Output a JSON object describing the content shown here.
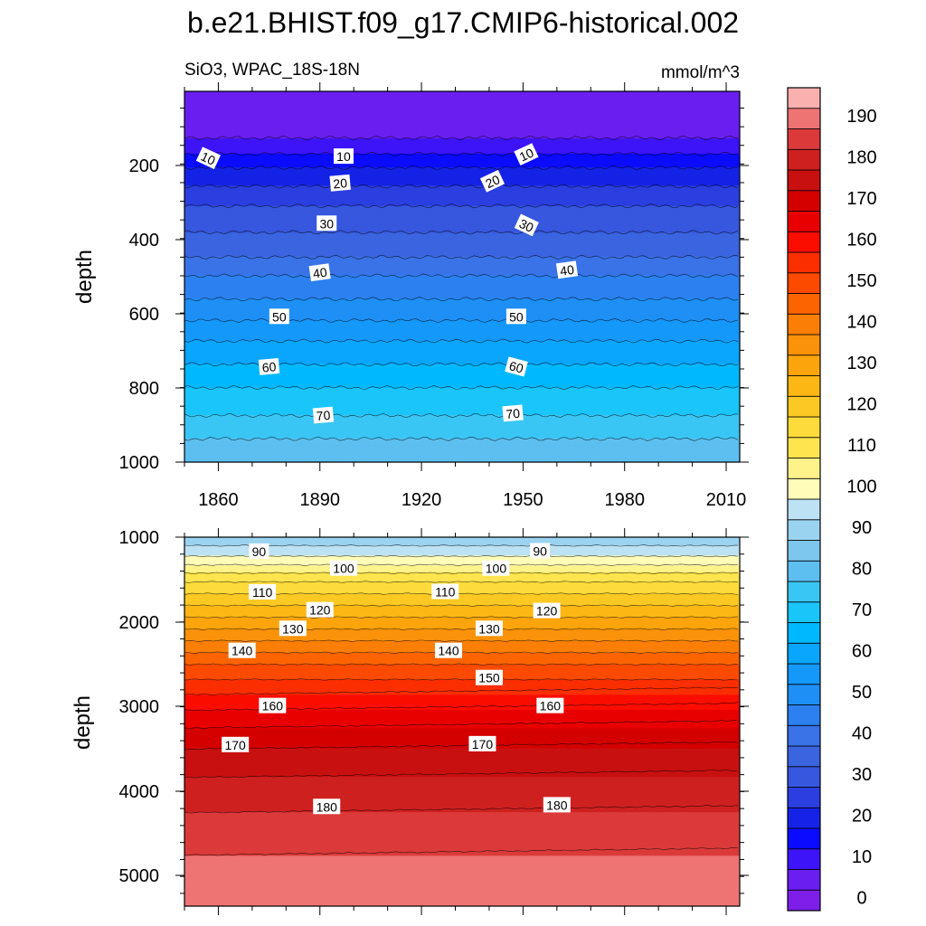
{
  "title": "b.e21.BHIST.f09_g17.CMIP6-historical.002",
  "left_subtitle": "SiO3, WPAC_18S-18N",
  "right_subtitle": "mmol/m^3",
  "colorbar": {
    "levels": [
      0,
      5,
      10,
      15,
      20,
      25,
      30,
      35,
      40,
      45,
      50,
      55,
      60,
      65,
      70,
      75,
      80,
      85,
      90,
      95,
      100,
      105,
      110,
      115,
      120,
      125,
      130,
      135,
      140,
      145,
      150,
      155,
      160,
      165,
      170,
      175,
      180,
      185,
      190
    ],
    "tick_labels": [
      "0",
      "10",
      "20",
      "30",
      "40",
      "50",
      "60",
      "70",
      "80",
      "90",
      "100",
      "110",
      "120",
      "130",
      "140",
      "150",
      "160",
      "170",
      "180",
      "190"
    ],
    "colors": [
      "#7d1fe8",
      "#6a1ef0",
      "#3d14f7",
      "#0a0bff",
      "#1523e6",
      "#2b3fe0",
      "#3657de",
      "#3a64e0",
      "#3a72e8",
      "#2c80f0",
      "#1e8ff5",
      "#1498fa",
      "#0aa6fd",
      "#00b8fd",
      "#1ac5fa",
      "#3ac6f4",
      "#5dbff0",
      "#7dc6ee",
      "#9ad3f0",
      "#bde2f4",
      "#fefcb8",
      "#fef28a",
      "#fee44e",
      "#fddb3a",
      "#fcc823",
      "#fdb714",
      "#fca40c",
      "#fa920a",
      "#fb7e06",
      "#fb6400",
      "#fc4a00",
      "#fb2e00",
      "#fb0d00",
      "#e80000",
      "#d40000",
      "#c91010",
      "#cf2020",
      "#dc3a3a",
      "#ee7474",
      "#fbb0b0"
    ]
  },
  "chart_data": [
    {
      "type": "contour",
      "panel": "upper",
      "x": [
        1850,
        2014
      ],
      "xticks": [
        "1860",
        "1890",
        "1920",
        "1950",
        "1980",
        "2010"
      ],
      "ylabel": "depth",
      "ylim": [
        1000,
        5
      ],
      "yticks": [
        "200",
        "400",
        "600",
        "800",
        "1000"
      ],
      "profile": [
        [
          5,
          1
        ],
        [
          70,
          2
        ],
        [
          120,
          4
        ],
        [
          160,
          8
        ],
        [
          200,
          14
        ],
        [
          250,
          19
        ],
        [
          300,
          24
        ],
        [
          350,
          28
        ],
        [
          400,
          31
        ],
        [
          450,
          35
        ],
        [
          500,
          40
        ],
        [
          550,
          44
        ],
        [
          600,
          48
        ],
        [
          650,
          53
        ],
        [
          700,
          57
        ],
        [
          750,
          61
        ],
        [
          800,
          65
        ],
        [
          850,
          68
        ],
        [
          900,
          72
        ],
        [
          950,
          76
        ],
        [
          1000,
          78
        ]
      ],
      "contour_labels": [
        {
          "text": "10",
          "x": 1857,
          "y": 185,
          "rot": 25
        },
        {
          "text": "10",
          "x": 1897,
          "y": 180,
          "rot": 0
        },
        {
          "text": "10",
          "x": 1951,
          "y": 175,
          "rot": -25
        },
        {
          "text": "20",
          "x": 1896,
          "y": 252,
          "rot": -5
        },
        {
          "text": "20",
          "x": 1941,
          "y": 247,
          "rot": -25
        },
        {
          "text": "30",
          "x": 1892,
          "y": 360,
          "rot": 0
        },
        {
          "text": "30",
          "x": 1951,
          "y": 365,
          "rot": 25
        },
        {
          "text": "40",
          "x": 1890,
          "y": 492,
          "rot": -8
        },
        {
          "text": "40",
          "x": 1963,
          "y": 485,
          "rot": -8
        },
        {
          "text": "50",
          "x": 1878,
          "y": 610,
          "rot": 0
        },
        {
          "text": "50",
          "x": 1948,
          "y": 610,
          "rot": 0
        },
        {
          "text": "60",
          "x": 1875,
          "y": 745,
          "rot": -5
        },
        {
          "text": "60",
          "x": 1948,
          "y": 745,
          "rot": 15
        },
        {
          "text": "70",
          "x": 1891,
          "y": 875,
          "rot": -5
        },
        {
          "text": "70",
          "x": 1947,
          "y": 870,
          "rot": -5
        }
      ]
    },
    {
      "type": "contour",
      "panel": "lower",
      "x": [
        1850,
        2014
      ],
      "ylabel": "depth",
      "ylim": [
        5350,
        1000
      ],
      "yticks": [
        "1000",
        "2000",
        "3000",
        "4000",
        "5000"
      ],
      "profile": [
        [
          1000,
          86
        ],
        [
          1250,
          96
        ],
        [
          1500,
          109
        ],
        [
          1750,
          118
        ],
        [
          2000,
          127
        ],
        [
          2250,
          136
        ],
        [
          2500,
          145
        ],
        [
          2750,
          152
        ],
        [
          3000,
          159
        ],
        [
          3250,
          165
        ],
        [
          3500,
          170
        ],
        [
          3750,
          174
        ],
        [
          4000,
          177
        ],
        [
          4250,
          180
        ],
        [
          4500,
          183
        ],
        [
          4750,
          185
        ],
        [
          5000,
          186
        ],
        [
          5350,
          188
        ]
      ],
      "contour_labels": [
        {
          "text": "90",
          "x": 1872,
          "y": 1170,
          "rot": 0
        },
        {
          "text": "90",
          "x": 1955,
          "y": 1165,
          "rot": 0
        },
        {
          "text": "100",
          "x": 1897,
          "y": 1370,
          "rot": 0
        },
        {
          "text": "100",
          "x": 1942,
          "y": 1370,
          "rot": 0
        },
        {
          "text": "110",
          "x": 1873,
          "y": 1650,
          "rot": 0
        },
        {
          "text": "110",
          "x": 1927,
          "y": 1645,
          "rot": 0
        },
        {
          "text": "120",
          "x": 1890,
          "y": 1860,
          "rot": 0
        },
        {
          "text": "120",
          "x": 1957,
          "y": 1870,
          "rot": 0
        },
        {
          "text": "130",
          "x": 1882,
          "y": 2080,
          "rot": 0
        },
        {
          "text": "130",
          "x": 1940,
          "y": 2080,
          "rot": 0
        },
        {
          "text": "140",
          "x": 1867,
          "y": 2340,
          "rot": 0
        },
        {
          "text": "140",
          "x": 1928,
          "y": 2340,
          "rot": 0
        },
        {
          "text": "150",
          "x": 1940,
          "y": 2660,
          "rot": 0
        },
        {
          "text": "160",
          "x": 1876,
          "y": 2990,
          "rot": 0
        },
        {
          "text": "160",
          "x": 1958,
          "y": 2990,
          "rot": 0
        },
        {
          "text": "170",
          "x": 1865,
          "y": 3450,
          "rot": 0
        },
        {
          "text": "170",
          "x": 1938,
          "y": 3440,
          "rot": 0
        },
        {
          "text": "180",
          "x": 1892,
          "y": 4180,
          "rot": 0
        },
        {
          "text": "180",
          "x": 1960,
          "y": 4160,
          "rot": 0
        }
      ]
    }
  ]
}
